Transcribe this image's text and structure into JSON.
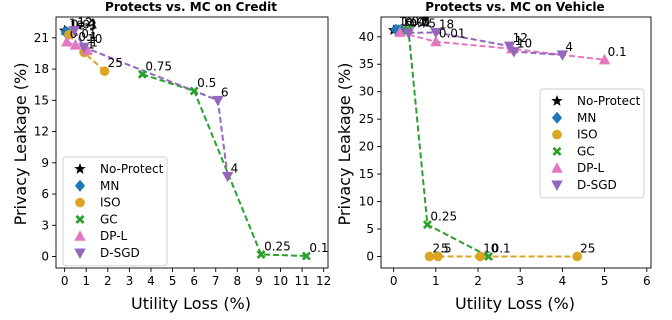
{
  "chart_data": [
    {
      "type": "scatter",
      "title": "Protects vs. MC on Credit",
      "xlabel": "Utility Loss (%)",
      "ylabel": "Privacy Leakage (%)",
      "xlim": [
        -0.4,
        12.2
      ],
      "ylim": [
        -1.1,
        23
      ],
      "xticks": [
        0,
        1,
        2,
        3,
        4,
        5,
        6,
        7,
        8,
        9,
        10,
        11,
        12
      ],
      "yticks": [
        0,
        3,
        6,
        9,
        12,
        15,
        18,
        21
      ],
      "legend_position": "lower-left",
      "series": [
        {
          "name": "No-Protect",
          "marker": "star",
          "color": "#000000",
          "line": false,
          "points": [
            {
              "x": 0.0,
              "y": 21.7,
              "label": ""
            }
          ]
        },
        {
          "name": "MN",
          "marker": "diamond",
          "color": "#1f77b4",
          "line": false,
          "points": [
            {
              "x": 0.05,
              "y": 21.6,
              "label": "1e-4"
            },
            {
              "x": 0.1,
              "y": 21.4,
              "label": "1e-3"
            },
            {
              "x": 0.15,
              "y": 21.5,
              "label": "0.01"
            }
          ]
        },
        {
          "name": "ISO",
          "marker": "circle",
          "color": "#daa520",
          "line": true,
          "points": [
            {
              "x": 0.2,
              "y": 21.3,
              "label": ""
            },
            {
              "x": 0.9,
              "y": 19.6,
              "label": "1"
            },
            {
              "x": 1.85,
              "y": 17.8,
              "label": "25"
            }
          ]
        },
        {
          "name": "GC",
          "marker": "x",
          "color": "#2ca02c",
          "line": true,
          "points": [
            {
              "x": 3.6,
              "y": 17.5,
              "label": "0.75"
            },
            {
              "x": 6.0,
              "y": 15.9,
              "label": "0.5"
            },
            {
              "x": 9.1,
              "y": 0.2,
              "label": "0.25"
            },
            {
              "x": 11.2,
              "y": 0.05,
              "label": "0.1"
            }
          ]
        },
        {
          "name": "DP-L",
          "marker": "triangle-up",
          "color": "#e377c2",
          "line": true,
          "points": [
            {
              "x": 0.1,
              "y": 20.6,
              "label": "0.01"
            },
            {
              "x": 0.5,
              "y": 20.3,
              "label": "0.1"
            },
            {
              "x": 1.05,
              "y": 19.8,
              "label": "1"
            }
          ]
        },
        {
          "name": "D-SGD",
          "marker": "triangle-down",
          "color": "#9467bd",
          "line": true,
          "points": [
            {
              "x": 0.45,
              "y": 21.7,
              "label": "12"
            },
            {
              "x": 0.9,
              "y": 20.1,
              "label": "10"
            },
            {
              "x": 7.1,
              "y": 15.0,
              "label": "6"
            },
            {
              "x": 7.55,
              "y": 7.7,
              "label": "4"
            }
          ]
        }
      ]
    },
    {
      "type": "scatter",
      "title": "Protects vs. MC on Vehicle",
      "xlabel": "Utility Loss (%)",
      "ylabel": "Privacy Leakage (%)",
      "xlim": [
        -0.3,
        6.1
      ],
      "ylim": [
        -2.1,
        43.6
      ],
      "xticks": [
        0,
        1,
        2,
        3,
        4,
        5,
        6
      ],
      "yticks": [
        0,
        5,
        10,
        15,
        20,
        25,
        30,
        35,
        40
      ],
      "legend_position": "center-right",
      "series": [
        {
          "name": "No-Protect",
          "marker": "star",
          "color": "#000000",
          "line": false,
          "points": [
            {
              "x": 0.0,
              "y": 41.2,
              "label": ""
            }
          ]
        },
        {
          "name": "MN",
          "marker": "diamond",
          "color": "#1f77b4",
          "line": false,
          "points": [
            {
              "x": 0.05,
              "y": 41.3,
              "label": "1e-4"
            },
            {
              "x": 0.12,
              "y": 41.2,
              "label": "1e-3"
            },
            {
              "x": 0.2,
              "y": 41.1,
              "label": "0.01"
            }
          ]
        },
        {
          "name": "ISO",
          "marker": "circle",
          "color": "#daa520",
          "line": true,
          "points": [
            {
              "x": 0.85,
              "y": 0.0,
              "label": "2.5"
            },
            {
              "x": 1.05,
              "y": 0.0,
              "label": "5"
            },
            {
              "x": 2.05,
              "y": 0.0,
              "label": "10"
            },
            {
              "x": 4.35,
              "y": 0.0,
              "label": "25"
            }
          ]
        },
        {
          "name": "GC",
          "marker": "x",
          "color": "#2ca02c",
          "line": true,
          "points": [
            {
              "x": 0.3,
              "y": 41.0,
              "label": "0.75"
            },
            {
              "x": 0.35,
              "y": 41.3,
              "label": "0.5"
            },
            {
              "x": 0.8,
              "y": 5.8,
              "label": "0.25"
            },
            {
              "x": 2.25,
              "y": 0.0,
              "label": "0.1"
            }
          ]
        },
        {
          "name": "DP-L",
          "marker": "triangle-up",
          "color": "#e377c2",
          "line": true,
          "points": [
            {
              "x": 0.15,
              "y": 40.8,
              "label": ""
            },
            {
              "x": 1.0,
              "y": 39.1,
              "label": "0.01"
            },
            {
              "x": 2.8,
              "y": 37.8,
              "label": "1"
            },
            {
              "x": 5.0,
              "y": 35.8,
              "label": "0.1"
            }
          ]
        },
        {
          "name": "D-SGD",
          "marker": "triangle-down",
          "color": "#9467bd",
          "line": true,
          "points": [
            {
              "x": 0.35,
              "y": 40.7,
              "label": ""
            },
            {
              "x": 1.0,
              "y": 40.8,
              "label": "18"
            },
            {
              "x": 2.75,
              "y": 38.3,
              "label": "12"
            },
            {
              "x": 2.85,
              "y": 37.3,
              "label": "10"
            },
            {
              "x": 4.0,
              "y": 36.7,
              "label": "4"
            }
          ]
        }
      ]
    }
  ]
}
